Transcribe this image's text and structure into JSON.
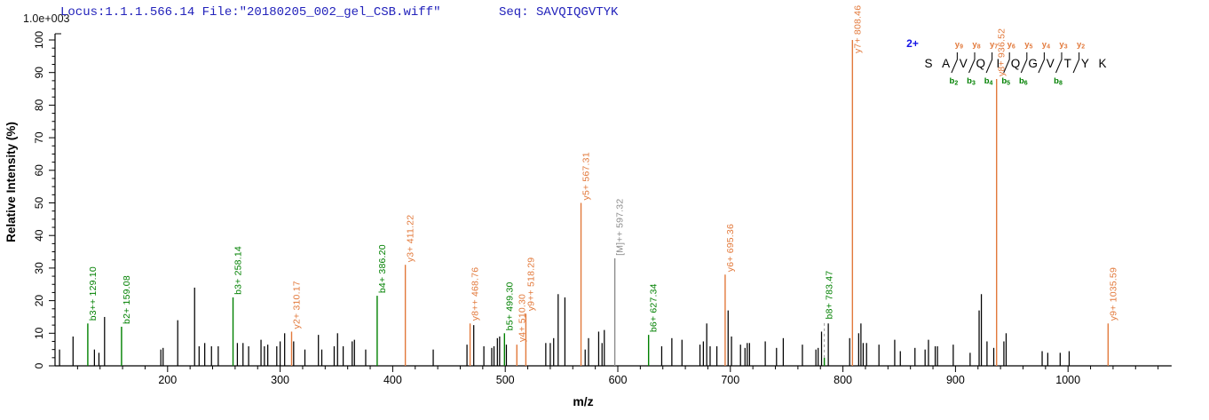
{
  "header": {
    "locus_file": "Locus:1.1.1.566.14 File:\"20180205_002_gel_CSB.wiff\"",
    "seq_label": "Seq: SAVQIQGVTYK"
  },
  "axes": {
    "scale_label": "1.0e+003",
    "y_title": "Relative  Intensity (%)",
    "x_title": "m/z",
    "y_min": 0,
    "y_max": 100,
    "y_major_step": 10,
    "y_minor_step": 2.5,
    "x_min": 100,
    "x_max": 1092,
    "x_major_start": 200,
    "x_major_end": 1000,
    "x_major_step": 100,
    "x_minor_step": 20
  },
  "colors": {
    "y_ion": "#E2793B",
    "b_ion": "#008000",
    "precursor": "#8C8C8C",
    "peak": "#000000",
    "axis": "#000000",
    "leader": "#999999",
    "header_text": "#2222BB",
    "charge_label": "#1414E6"
  },
  "sequence_ladder": {
    "charge": "2+",
    "residues": [
      "S",
      "A",
      "V",
      "Q",
      "I",
      "Q",
      "G",
      "V",
      "T",
      "Y",
      "K"
    ],
    "y_ions": [
      {
        "gap": 2,
        "ion": "y",
        "num": "9"
      },
      {
        "gap": 3,
        "ion": "y",
        "num": "8"
      },
      {
        "gap": 4,
        "ion": "y",
        "num": "7"
      },
      {
        "gap": 5,
        "ion": "y",
        "num": "6"
      },
      {
        "gap": 6,
        "ion": "y",
        "num": "5"
      },
      {
        "gap": 7,
        "ion": "y",
        "num": "4"
      },
      {
        "gap": 8,
        "ion": "y",
        "num": "3"
      },
      {
        "gap": 9,
        "ion": "y",
        "num": "2"
      }
    ],
    "b_ions": [
      {
        "gap": 2,
        "ion": "b",
        "num": "2"
      },
      {
        "gap": 3,
        "ion": "b",
        "num": "3"
      },
      {
        "gap": 4,
        "ion": "b",
        "num": "4"
      },
      {
        "gap": 5,
        "ion": "b",
        "num": "5"
      },
      {
        "gap": 6,
        "ion": "b",
        "num": "6"
      },
      {
        "gap": 8,
        "ion": "b",
        "num": "8"
      }
    ]
  },
  "chart_data": {
    "type": "bar",
    "xlabel": "m/z",
    "ylabel": "Relative  Intensity (%)",
    "xlim": [
      100,
      1092
    ],
    "ylim": [
      0,
      100
    ],
    "y_axis_full_scale": "1.0e+003",
    "labeled_peaks": [
      {
        "label": "b3++ 129.10",
        "ion": "b",
        "mz": 129.1,
        "intensity": 13
      },
      {
        "label": "b2+ 159.08",
        "ion": "b",
        "mz": 159.08,
        "intensity": 12
      },
      {
        "label": "b3+ 258.14",
        "ion": "b",
        "mz": 258.14,
        "intensity": 21
      },
      {
        "label": "y2+ 310.17",
        "ion": "y",
        "mz": 310.17,
        "intensity": 10.5
      },
      {
        "label": "b4+ 386.20",
        "ion": "b",
        "mz": 386.2,
        "intensity": 21.5
      },
      {
        "label": "y3+ 411.22",
        "ion": "y",
        "mz": 411.22,
        "intensity": 31
      },
      {
        "label": "y8++ 468.76",
        "ion": "y",
        "mz": 468.76,
        "intensity": 13
      },
      {
        "label": "b5+ 499.30",
        "ion": "b",
        "mz": 499.3,
        "intensity": 10
      },
      {
        "label": "y4+ 510.30",
        "ion": "y",
        "mz": 510.3,
        "intensity": 6.5
      },
      {
        "label": "y9++ 518.29",
        "ion": "y",
        "mz": 518.29,
        "intensity": 16
      },
      {
        "label": "y5+ 567.31",
        "ion": "y",
        "mz": 567.31,
        "intensity": 50
      },
      {
        "label": "[M]++ 597.32",
        "ion": "precursor",
        "mz": 597.32,
        "intensity": 33
      },
      {
        "label": "b6+ 627.34",
        "ion": "b",
        "mz": 627.34,
        "intensity": 9.5
      },
      {
        "label": "y6+ 695.36",
        "ion": "y",
        "mz": 695.36,
        "intensity": 28
      },
      {
        "label": "b8+ 783.47",
        "ion": "b",
        "mz": 783.47,
        "intensity": 2.5,
        "leader_to": 13.5
      },
      {
        "label": "y7+ 808.46",
        "ion": "y",
        "mz": 808.46,
        "intensity": 100,
        "label_y": 60
      },
      {
        "label": "y8+ 936.52",
        "ion": "y",
        "mz": 936.52,
        "intensity": 88
      },
      {
        "label": "y9+ 1035.59",
        "ion": "y",
        "mz": 1035.59,
        "intensity": 13
      }
    ],
    "peaks": [
      [
        104,
        5
      ],
      [
        116,
        9
      ],
      [
        135,
        5
      ],
      [
        139,
        4
      ],
      [
        144,
        15
      ],
      [
        194,
        5
      ],
      [
        196,
        5.5
      ],
      [
        209,
        14
      ],
      [
        224,
        24
      ],
      [
        228,
        6
      ],
      [
        233,
        7
      ],
      [
        239,
        6
      ],
      [
        245,
        6
      ],
      [
        262,
        7
      ],
      [
        267,
        7
      ],
      [
        272,
        6
      ],
      [
        283,
        8
      ],
      [
        286,
        6
      ],
      [
        289,
        6.5
      ],
      [
        297,
        6
      ],
      [
        300,
        7.5
      ],
      [
        304,
        10
      ],
      [
        312,
        7.5
      ],
      [
        322,
        5
      ],
      [
        334,
        9.5
      ],
      [
        337,
        5
      ],
      [
        348,
        6
      ],
      [
        351,
        10
      ],
      [
        356,
        6
      ],
      [
        364,
        7.5
      ],
      [
        366,
        8
      ],
      [
        376,
        5
      ],
      [
        436,
        5
      ],
      [
        466,
        6.5
      ],
      [
        472,
        12.5
      ],
      [
        481,
        6
      ],
      [
        488,
        5.5
      ],
      [
        490,
        6
      ],
      [
        493,
        8.5
      ],
      [
        495,
        9
      ],
      [
        501,
        6.5
      ],
      [
        536,
        7
      ],
      [
        540,
        7
      ],
      [
        543,
        8.5
      ],
      [
        547,
        22
      ],
      [
        553,
        21
      ],
      [
        571,
        5
      ],
      [
        574,
        8.5
      ],
      [
        583,
        10.5
      ],
      [
        586,
        7
      ],
      [
        588,
        11
      ],
      [
        639,
        6
      ],
      [
        648,
        8.5
      ],
      [
        657,
        8
      ],
      [
        673,
        6.5
      ],
      [
        676,
        7.5
      ],
      [
        679,
        13
      ],
      [
        682,
        6
      ],
      [
        688,
        6
      ],
      [
        698,
        17
      ],
      [
        701,
        9
      ],
      [
        709,
        6.5
      ],
      [
        713,
        5.5
      ],
      [
        715,
        7
      ],
      [
        717,
        7
      ],
      [
        731,
        7.5
      ],
      [
        741,
        5.5
      ],
      [
        747,
        8.5
      ],
      [
        764,
        6.5
      ],
      [
        776,
        5
      ],
      [
        778,
        5.5
      ],
      [
        781,
        10.5
      ],
      [
        787,
        13
      ],
      [
        806,
        8.5
      ],
      [
        814,
        10
      ],
      [
        816,
        13
      ],
      [
        818,
        7
      ],
      [
        821,
        7
      ],
      [
        832,
        6.5
      ],
      [
        846,
        8
      ],
      [
        851,
        4.5
      ],
      [
        864,
        5.5
      ],
      [
        873,
        5
      ],
      [
        876,
        8
      ],
      [
        882,
        6
      ],
      [
        884,
        6
      ],
      [
        898,
        6.5
      ],
      [
        913,
        4
      ],
      [
        921,
        17
      ],
      [
        923,
        22
      ],
      [
        928,
        7.5
      ],
      [
        934,
        5.5
      ],
      [
        943,
        7.5
      ],
      [
        945,
        10
      ],
      [
        977,
        4.5
      ],
      [
        982,
        4
      ],
      [
        993,
        4
      ],
      [
        1001,
        4.5
      ]
    ]
  }
}
